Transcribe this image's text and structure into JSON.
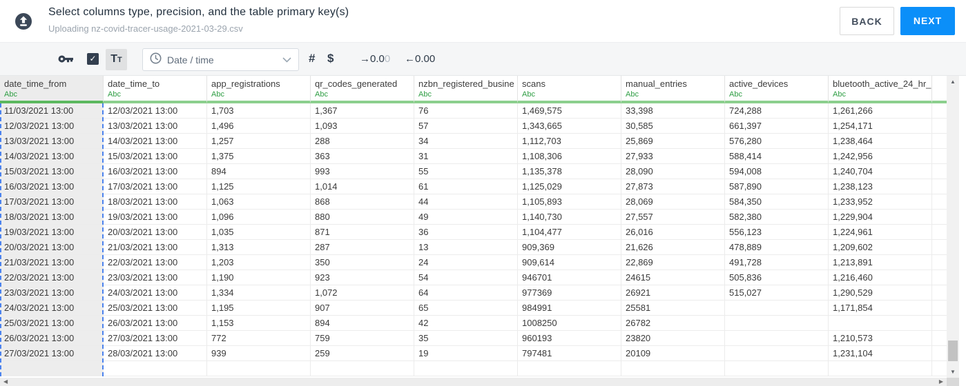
{
  "header": {
    "title": "Select columns type, precision, and the table primary key(s)",
    "subtitle": "Uploading nz-covid-tracer-usage-2021-03-29.csv",
    "back_label": "BACK",
    "next_label": "NEXT"
  },
  "toolbar": {
    "primary_key_checkbox_checked": true,
    "checkbox_glyph": "✓",
    "text_type_label": "Tt",
    "type_dropdown_value": "Date / time",
    "number_type_label": "#",
    "currency_type_label": "$",
    "precision_increase": {
      "arrow": "→",
      "value": "0.0",
      "muted": "0"
    },
    "precision_decrease": {
      "arrow": "←",
      "value": "0.00"
    }
  },
  "table": {
    "columns": [
      {
        "name": "date_time_from",
        "type": "Abc",
        "selected": true
      },
      {
        "name": "date_time_to",
        "type": "Abc",
        "selected": false
      },
      {
        "name": "app_registrations",
        "type": "Abc",
        "selected": false
      },
      {
        "name": "qr_codes_generated",
        "type": "Abc",
        "selected": false
      },
      {
        "name": "nzbn_registered_busine",
        "type": "Abc",
        "selected": false
      },
      {
        "name": "scans",
        "type": "Abc",
        "selected": false
      },
      {
        "name": "manual_entries",
        "type": "Abc",
        "selected": false
      },
      {
        "name": "active_devices",
        "type": "Abc",
        "selected": false
      },
      {
        "name": "bluetooth_active_24_hr_",
        "type": "Abc",
        "selected": false
      },
      {
        "name": "",
        "type": "",
        "selected": false
      }
    ],
    "rows": [
      [
        "11/03/2021 13:00",
        "12/03/2021 13:00",
        "1,703",
        "1,367",
        "76",
        "1,469,575",
        "33,398",
        "724,288",
        "1,261,266"
      ],
      [
        "12/03/2021 13:00",
        "13/03/2021 13:00",
        "1,496",
        "1,093",
        "57",
        "1,343,665",
        "30,585",
        "661,397",
        "1,254,171"
      ],
      [
        "13/03/2021 13:00",
        "14/03/2021 13:00",
        "1,257",
        "288",
        "34",
        "1,112,703",
        "25,869",
        "576,280",
        "1,238,464"
      ],
      [
        "14/03/2021 13:00",
        "15/03/2021 13:00",
        "1,375",
        "363",
        "31",
        "1,108,306",
        "27,933",
        "588,414",
        "1,242,956"
      ],
      [
        "15/03/2021 13:00",
        "16/03/2021 13:00",
        "894",
        "993",
        "55",
        "1,135,378",
        "28,090",
        "594,008",
        "1,240,704"
      ],
      [
        "16/03/2021 13:00",
        "17/03/2021 13:00",
        "1,125",
        "1,014",
        "61",
        "1,125,029",
        "27,873",
        "587,890",
        "1,238,123"
      ],
      [
        "17/03/2021 13:00",
        "18/03/2021 13:00",
        "1,063",
        "868",
        "44",
        "1,105,893",
        "28,069",
        "584,350",
        "1,233,952"
      ],
      [
        "18/03/2021 13:00",
        "19/03/2021 13:00",
        "1,096",
        "880",
        "49",
        "1,140,730",
        "27,557",
        "582,380",
        "1,229,904"
      ],
      [
        "19/03/2021 13:00",
        "20/03/2021 13:00",
        "1,035",
        "871",
        "36",
        "1,104,477",
        "26,016",
        "556,123",
        "1,224,961"
      ],
      [
        "20/03/2021 13:00",
        "21/03/2021 13:00",
        "1,313",
        "287",
        "13",
        "909,369",
        "21,626",
        "478,889",
        "1,209,602"
      ],
      [
        "21/03/2021 13:00",
        "22/03/2021 13:00",
        "1,203",
        "350",
        "24",
        "909,614",
        "22,869",
        "491,728",
        "1,213,891"
      ],
      [
        "22/03/2021 13:00",
        "23/03/2021 13:00",
        "1,190",
        "923",
        "54",
        "946701",
        "24615",
        "505,836",
        "1,216,460"
      ],
      [
        "23/03/2021 13:00",
        "24/03/2021 13:00",
        "1,334",
        "1,072",
        "64",
        "977369",
        "26921",
        "515,027",
        "1,290,529"
      ],
      [
        "24/03/2021 13:00",
        "25/03/2021 13:00",
        "1,195",
        "907",
        "65",
        "984991",
        "25581",
        "",
        "1,171,854"
      ],
      [
        "25/03/2021 13:00",
        "26/03/2021 13:00",
        "1,153",
        "894",
        "42",
        "1008250",
        "26782",
        "",
        ""
      ],
      [
        "26/03/2021 13:00",
        "27/03/2021 13:00",
        "772",
        "759",
        "35",
        "960193",
        "23820",
        "",
        "1,210,573"
      ],
      [
        "27/03/2021 13:00",
        "28/03/2021 13:00",
        "939",
        "259",
        "19",
        "797481",
        "20109",
        "",
        "1,231,104"
      ]
    ]
  },
  "colors": {
    "accent_blue": "#0b8ff9",
    "type_green": "#2f9e44",
    "header_bar_green": "#8ccf8e",
    "selected_bar_green": "#5cb85f",
    "selection_dash_blue": "#4c83ee",
    "icon_dark": "#333f4f"
  }
}
